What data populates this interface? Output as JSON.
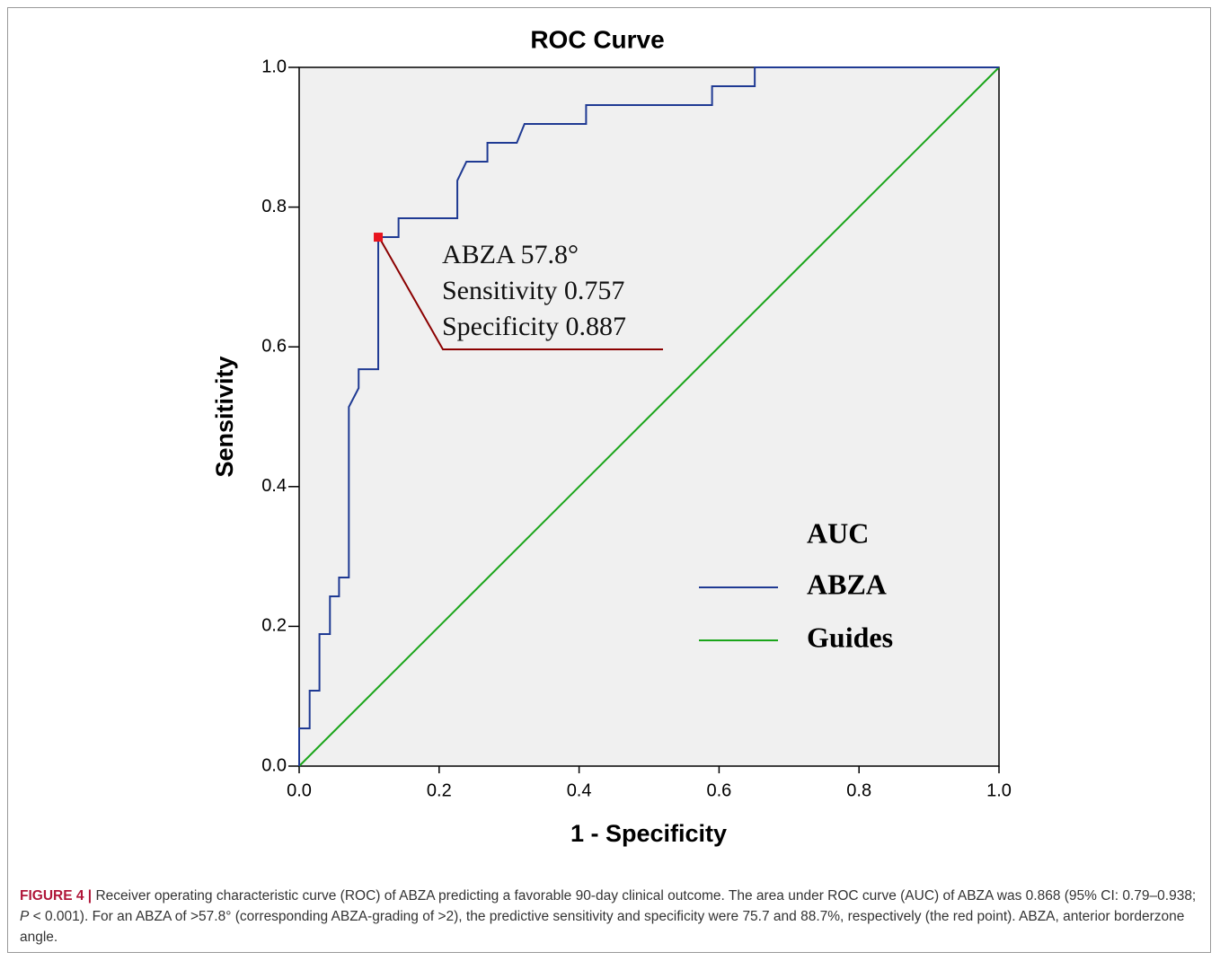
{
  "chart_data": {
    "type": "line",
    "title": "ROC Curve",
    "x_label": "1 - Specificity",
    "y_label": "Sensitivity",
    "xlim": [
      0,
      1
    ],
    "ylim": [
      0,
      1
    ],
    "xticks": [
      {
        "value": 0,
        "label": "0.0"
      },
      {
        "value": 0.2,
        "label": "0.2"
      },
      {
        "value": 0.4,
        "label": "0.4"
      },
      {
        "value": 0.6,
        "label": "0.6"
      },
      {
        "value": 0.8,
        "label": "0.8"
      },
      {
        "value": 1,
        "label": "1.0"
      }
    ],
    "yticks": [
      {
        "value": 0,
        "label": "0.0"
      },
      {
        "value": 0.2,
        "label": "0.2"
      },
      {
        "value": 0.4,
        "label": "0.4"
      },
      {
        "value": 0.6,
        "label": "0.6"
      },
      {
        "value": 0.8,
        "label": "0.8"
      },
      {
        "value": 1,
        "label": "1.0"
      }
    ],
    "grid": false,
    "legend_title": "AUC",
    "series": [
      {
        "name": "ABZA",
        "color": "#1f3a93",
        "x": [
          0,
          0,
          0.015,
          0.015,
          0.029,
          0.029,
          0.044,
          0.044,
          0.057,
          0.057,
          0.071,
          0.071,
          0.085,
          0.085,
          0.113,
          0.113,
          0.142,
          0.142,
          0.226,
          0.226,
          0.239,
          0.269,
          0.269,
          0.311,
          0.322,
          0.41,
          0.41,
          0.59,
          0.59,
          0.651,
          0.651,
          1.0
        ],
        "values": [
          0,
          0.054,
          0.054,
          0.108,
          0.108,
          0.189,
          0.189,
          0.243,
          0.243,
          0.27,
          0.27,
          0.514,
          0.541,
          0.568,
          0.568,
          0.757,
          0.757,
          0.784,
          0.784,
          0.838,
          0.865,
          0.865,
          0.892,
          0.892,
          0.919,
          0.919,
          0.946,
          0.946,
          0.973,
          0.973,
          1.0,
          1.0
        ]
      },
      {
        "name": "Guides",
        "color": "#1aa51a",
        "x": [
          0,
          1
        ],
        "values": [
          0,
          1
        ]
      }
    ],
    "highlight": {
      "x": 0.113,
      "y": 0.757,
      "color": "#e8141e"
    },
    "annotation": [
      "ABZA 57.8°",
      "Sensitivity 0.757",
      "Specificity 0.887"
    ]
  },
  "caption": {
    "label": "FIGURE 4 |",
    "parts": [
      " Receiver operating characteristic curve (ROC) of ABZA predicting a favorable 90-day clinical outcome. The area under ROC curve (AUC) of ABZA was 0.868 (95% CI: 0.79–0.938; ",
      "P",
      " < 0.001). For an ABZA of >57.8° (corresponding ABZA-grading of >2), the predictive sensitivity and specificity were 75.7 and 88.7%, respectively (the red point). ABZA, anterior borderzone angle."
    ]
  }
}
